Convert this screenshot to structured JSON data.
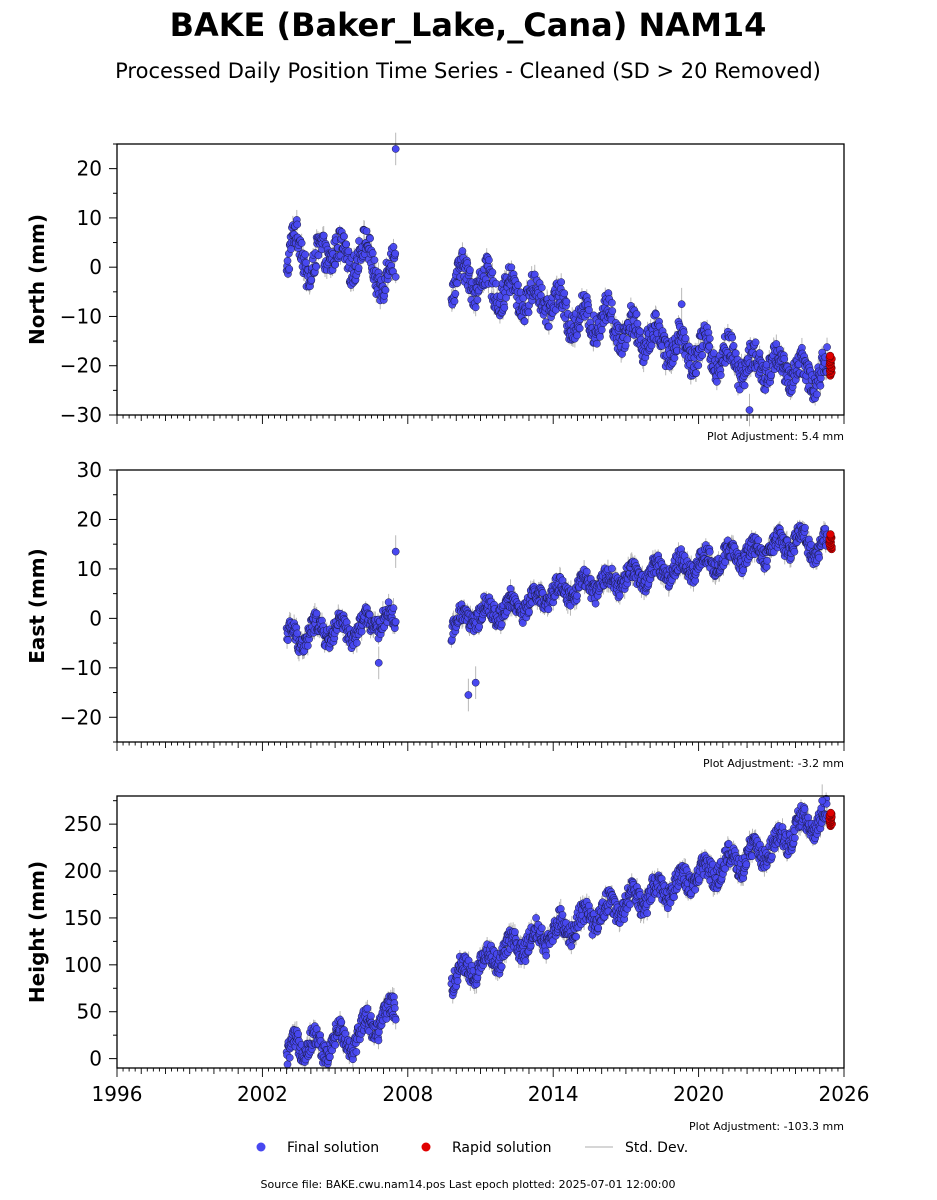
{
  "figure": {
    "title": "BAKE (Baker_Lake,_Cana) NAM14",
    "subtitle": "Processed Daily Position Time Series - Cleaned (SD > 20 Removed)",
    "source_note": "Source file: BAKE.cwu.nam14.pos  Last epoch plotted: 2025-07-01 12:00:00",
    "colors": {
      "final": "#4848f0",
      "final_edge": "#1a1a40",
      "rapid": "#e00000",
      "std": "#b8b8b8"
    }
  },
  "legend": {
    "placement": "bottom-center",
    "items": [
      {
        "label": "Final solution",
        "color": "#4848f0",
        "marker": "circle"
      },
      {
        "label": "Rapid solution",
        "color": "#e00000",
        "marker": "circle"
      },
      {
        "label": "Std. Dev.",
        "color": "#c8c8c8",
        "marker": "line"
      }
    ]
  },
  "chart_data": [
    {
      "type": "scatter",
      "ylabel": "North (mm)",
      "xlim": [
        1996,
        2026
      ],
      "ylim": [
        -30,
        25
      ],
      "yticks": [
        -30,
        -20,
        -10,
        0,
        10,
        20
      ],
      "ytick_labels": [
        "−30",
        "−20",
        "−10",
        "0",
        "10",
        "20"
      ],
      "xticks": [
        1996,
        2002,
        2008,
        2014,
        2020,
        2026
      ],
      "xtick_labels": [],
      "annotation": "Plot Adjustment: 5.4 mm",
      "series": [
        {
          "name": "Final solution",
          "segments": [
            {
              "x": [
                2003.0,
                2003.3,
                2003.6,
                2004.0,
                2004.5,
                2005.0,
                2005.5,
                2006.0,
                2006.5,
                2007.0,
                2007.5
              ],
              "y": [
                -2,
                5,
                6,
                -3,
                4,
                3,
                1,
                3,
                2,
                -4,
                1
              ]
            },
            {
              "x": [
                2009.8,
                2010.5,
                2011.0,
                2012.0,
                2013.0,
                2014.0,
                2015.0,
                2016.0,
                2017.0,
                2018.0,
                2019.0,
                2020.0,
                2021.0,
                2022.0,
                2023.0,
                2024.0,
                2025.0,
                2025.3
              ],
              "y": [
                -3,
                -2,
                -3,
                -5,
                -6,
                -7,
                -11,
                -10,
                -13,
                -14,
                -16,
                -17,
                -18,
                -20,
                -20,
                -21,
                -22,
                -21
              ]
            }
          ],
          "outliers": [
            {
              "x": 2007.5,
              "y": 24
            },
            {
              "x": 2019.3,
              "y": -7.5
            },
            {
              "x": 2022.1,
              "y": -29
            }
          ],
          "scatter": 3
        },
        {
          "name": "Rapid solution",
          "x": [
            2025.4,
            2025.5
          ],
          "y": [
            -22,
            -18
          ]
        }
      ]
    },
    {
      "type": "scatter",
      "ylabel": "East (mm)",
      "xlim": [
        1996,
        2026
      ],
      "ylim": [
        -25,
        30
      ],
      "yticks": [
        -20,
        -10,
        0,
        10,
        20,
        30
      ],
      "ytick_labels": [
        "−20",
        "−10",
        "0",
        "10",
        "20",
        "30"
      ],
      "xticks": [
        1996,
        2002,
        2008,
        2014,
        2020,
        2026
      ],
      "xtick_labels": [],
      "annotation": "Plot Adjustment: -3.2 mm",
      "series": [
        {
          "name": "Final solution",
          "segments": [
            {
              "x": [
                2003.0,
                2003.5,
                2004.0,
                2004.5,
                2005.0,
                2005.5,
                2006.0,
                2006.5,
                2007.0,
                2007.5
              ],
              "y": [
                -3,
                -5,
                -2,
                -3,
                -2,
                -3,
                -2,
                -1,
                0,
                -1
              ]
            },
            {
              "x": [
                2009.8,
                2010.5,
                2011.0,
                2012.0,
                2013.0,
                2014.0,
                2015.0,
                2016.0,
                2017.0,
                2018.0,
                2019.0,
                2020.0,
                2021.0,
                2022.0,
                2023.0,
                2024.0,
                2025.0,
                2025.3
              ],
              "y": [
                -1,
                0,
                1,
                2,
                3,
                5,
                6,
                7,
                8,
                9,
                10,
                11,
                12,
                13,
                14,
                16,
                14,
                15
              ]
            }
          ],
          "outliers": [
            {
              "x": 2007.5,
              "y": 13.5
            },
            {
              "x": 2010.5,
              "y": -15.5
            },
            {
              "x": 2010.8,
              "y": -13
            },
            {
              "x": 2006.8,
              "y": -9
            }
          ],
          "scatter": 2
        },
        {
          "name": "Rapid solution",
          "x": [
            2025.4,
            2025.5
          ],
          "y": [
            14,
            17
          ]
        }
      ]
    },
    {
      "type": "scatter",
      "ylabel": "Height (mm)",
      "xlim": [
        1996,
        2026
      ],
      "ylim": [
        -10,
        280
      ],
      "yticks": [
        0,
        50,
        100,
        150,
        200,
        250
      ],
      "ytick_labels": [
        "0",
        "50",
        "100",
        "150",
        "200",
        "250"
      ],
      "xticks": [
        1996,
        2002,
        2008,
        2014,
        2020,
        2026
      ],
      "xtick_labels": [
        "1996",
        "2002",
        "2008",
        "2014",
        "2020",
        "2026"
      ],
      "annotation": "Plot Adjustment: -103.3 mm",
      "series": [
        {
          "name": "Final solution",
          "segments": [
            {
              "x": [
                2003.0,
                2003.5,
                2004.0,
                2004.5,
                2005.0,
                2005.5,
                2006.0,
                2006.5,
                2007.0,
                2007.5
              ],
              "y": [
                0,
                15,
                20,
                5,
                25,
                15,
                30,
                35,
                45,
                50
              ]
            },
            {
              "x": [
                2009.8,
                2010.5,
                2011.0,
                2012.0,
                2013.0,
                2014.0,
                2015.0,
                2016.0,
                2017.0,
                2018.0,
                2019.0,
                2020.0,
                2021.0,
                2022.0,
                2023.0,
                2024.0,
                2025.0,
                2025.3
              ],
              "y": [
                85,
                95,
                100,
                115,
                125,
                135,
                145,
                155,
                165,
                175,
                185,
                195,
                205,
                215,
                225,
                245,
                255,
                255
              ]
            }
          ],
          "outliers": [
            {
              "x": 2025.1,
              "y": 275
            }
          ],
          "scatter": 12
        },
        {
          "name": "Rapid solution",
          "x": [
            2025.4,
            2025.5
          ],
          "y": [
            248,
            262
          ]
        }
      ]
    }
  ]
}
